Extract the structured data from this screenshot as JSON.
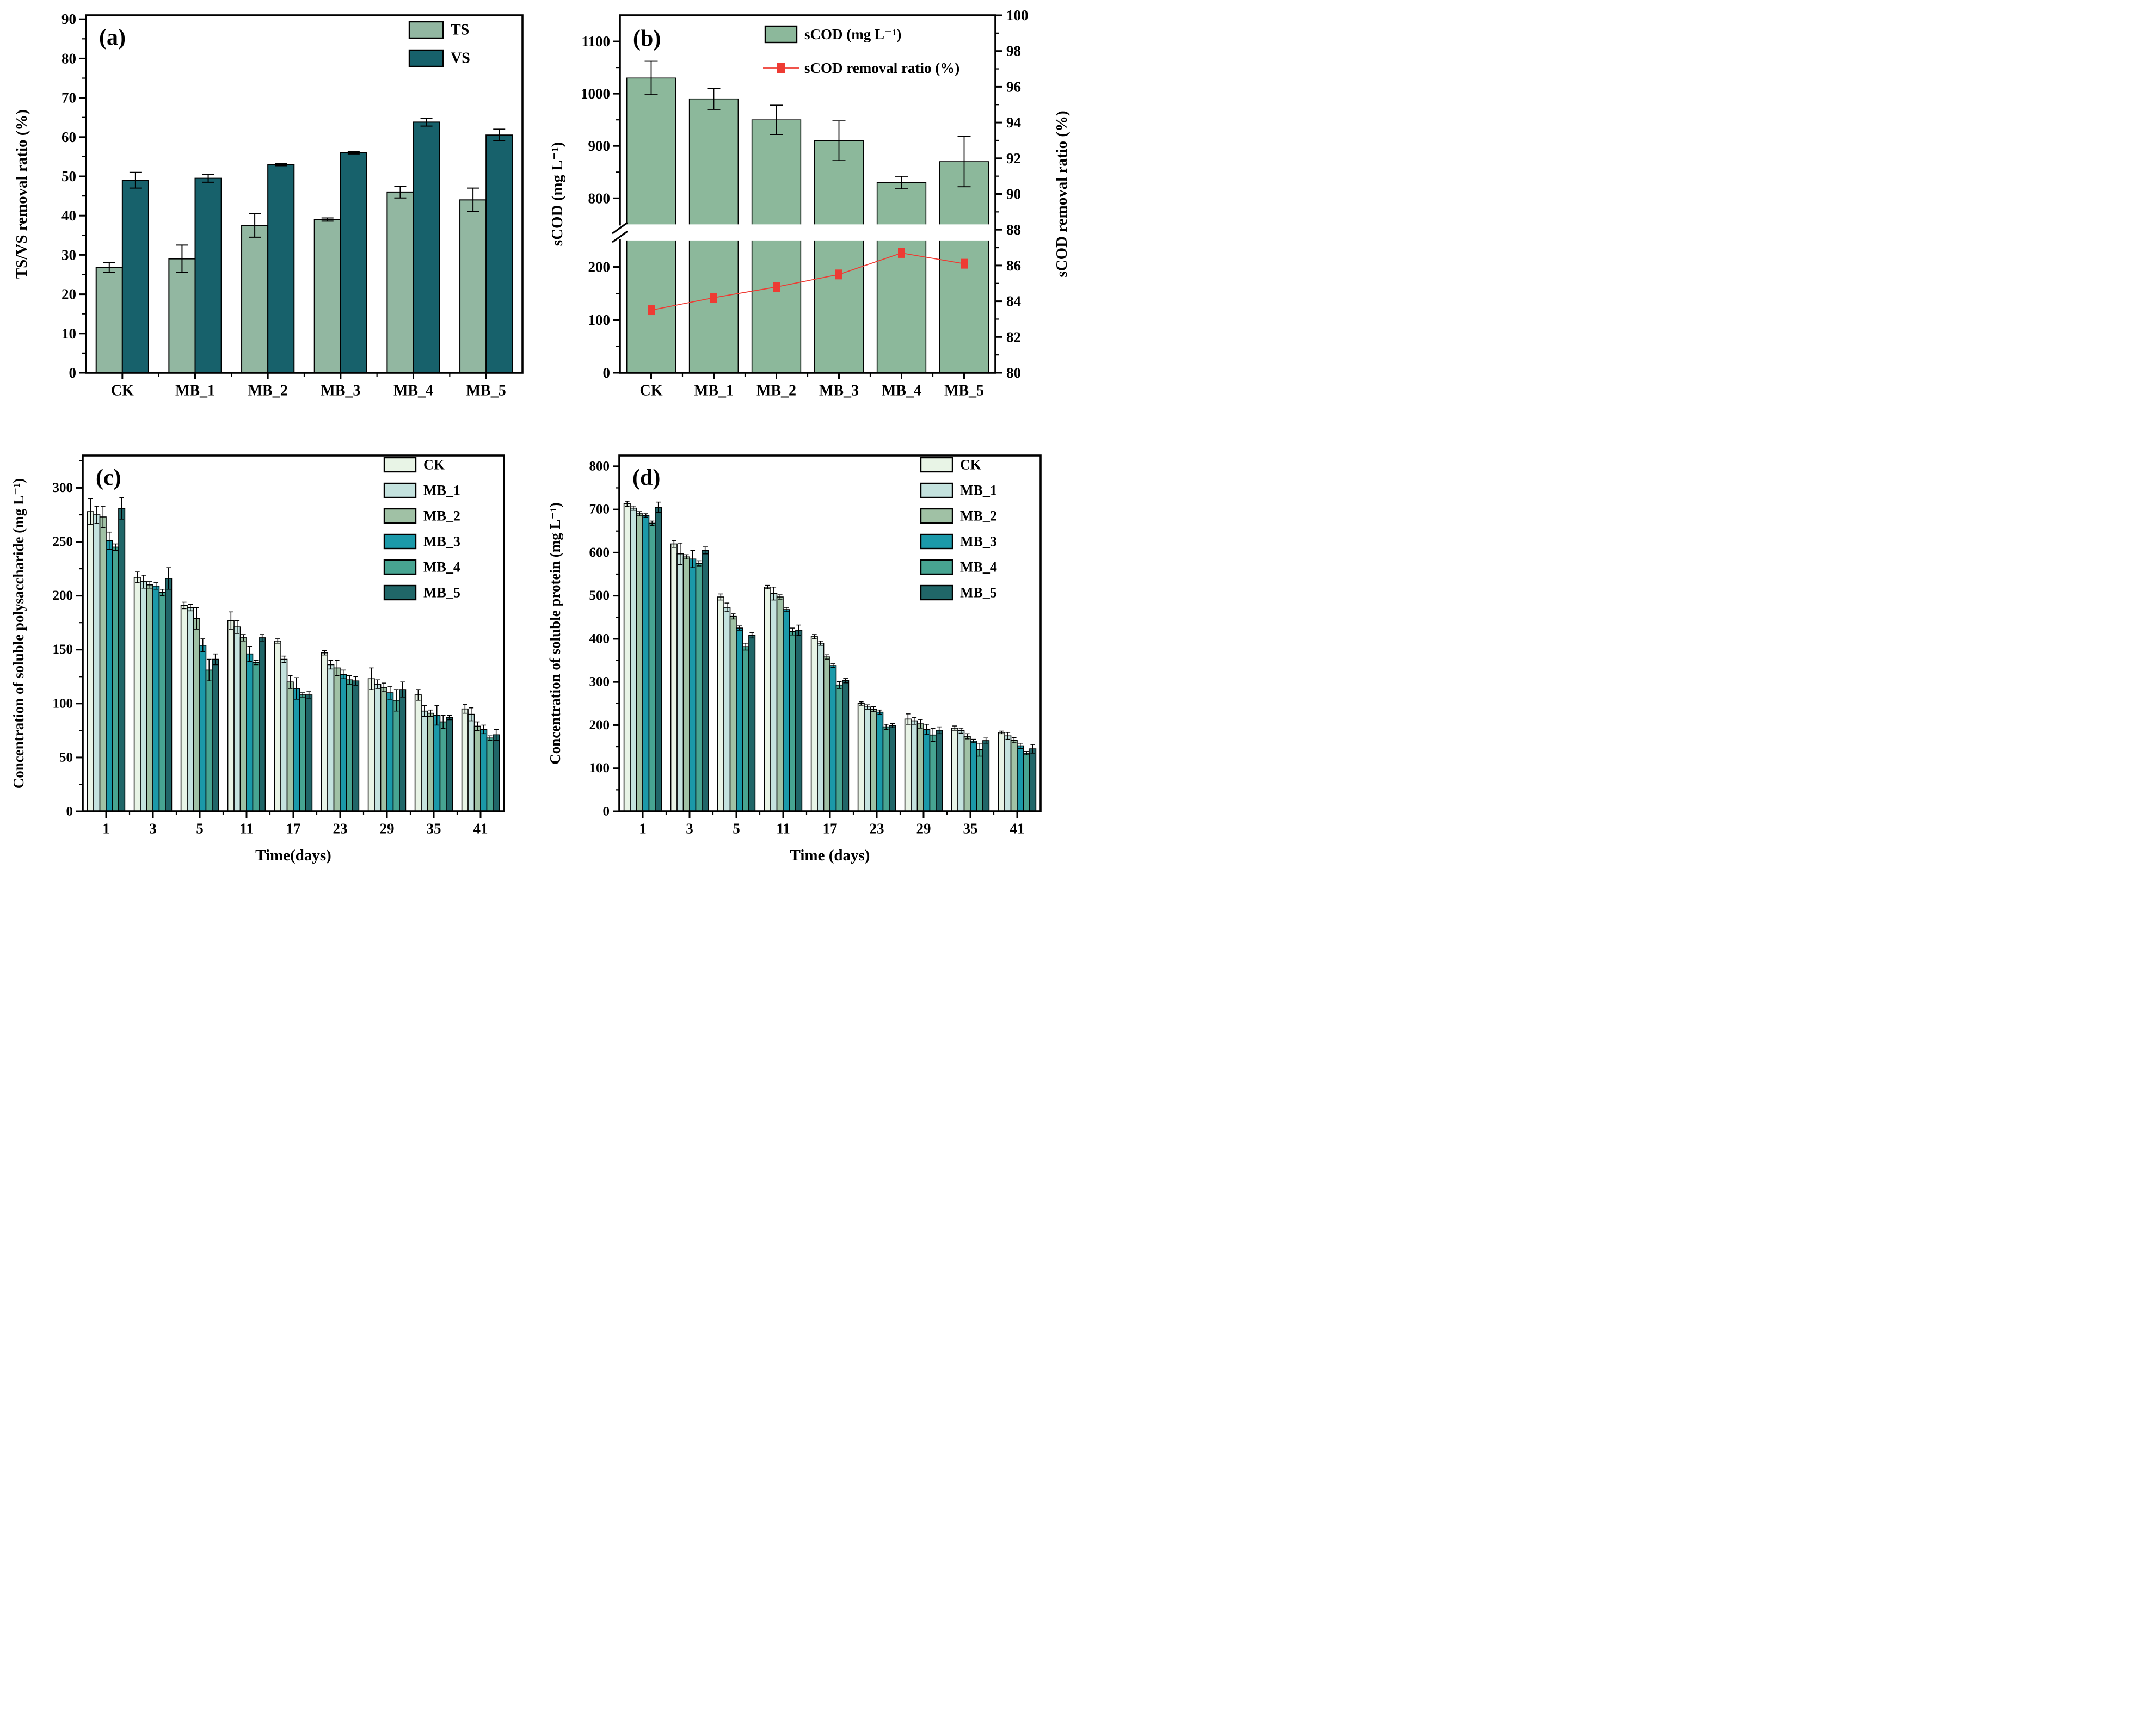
{
  "figure": {
    "background": "#ffffff",
    "panel_labels": [
      "(a)",
      "(b)",
      "(c)",
      "(d)"
    ]
  },
  "colors": {
    "ts": "#92b7a1",
    "vs": "#17616b",
    "scod_bar": "#8cb89b",
    "scod_line": "#ee3b33",
    "ck": "#e8f4e6",
    "mb1": "#c4e2de",
    "mb2": "#a0c1a5",
    "mb3": "#1b99a9",
    "mb4": "#47a491",
    "mb5": "#206668"
  },
  "chart_data": [
    {
      "id": "a",
      "type": "bar",
      "panel_label": "(a)",
      "ylabel": "TS/VS removal ratio (%)",
      "ylim": [
        0,
        91
      ],
      "yticks": [
        0,
        10,
        20,
        30,
        40,
        50,
        60,
        70,
        80,
        90
      ],
      "yminor_step": 5,
      "categories": [
        "CK",
        "MB_1",
        "MB_2",
        "MB_3",
        "MB_4",
        "MB_5"
      ],
      "legend_position": "top-right",
      "series": [
        {
          "name": "TS",
          "color": "#92b7a1",
          "values": [
            26.8,
            29.0,
            37.5,
            39.0,
            46.0,
            44.0
          ],
          "errors": [
            1.2,
            3.5,
            3.0,
            0.4,
            1.5,
            3.0
          ]
        },
        {
          "name": "VS",
          "color": "#17616b",
          "values": [
            49.0,
            49.5,
            53.0,
            56.0,
            63.8,
            60.5
          ],
          "errors": [
            2.0,
            1.0,
            0.3,
            0.3,
            1.0,
            1.5
          ]
        }
      ]
    },
    {
      "id": "b",
      "type": "bar-line-broken-axis",
      "panel_label": "(b)",
      "ylabel_left": "sCOD (mg L⁻¹)",
      "ylabel_right": "sCOD removal ratio (%)",
      "categories": [
        "CK",
        "MB_1",
        "MB_2",
        "MB_3",
        "MB_4",
        "MB_5"
      ],
      "left_axis": {
        "lower_range": [
          0,
          250
        ],
        "upper_range": [
          750,
          1150
        ],
        "lower_ticks": [
          0,
          100,
          200
        ],
        "lower_minor": [
          50,
          150
        ],
        "upper_ticks": [
          800,
          900,
          1000,
          1100
        ],
        "upper_minor": [
          850,
          950,
          1050
        ]
      },
      "right_axis": {
        "min": 80,
        "max": 100,
        "ticks": [
          80,
          82,
          84,
          86,
          88,
          90,
          92,
          94,
          96,
          98,
          100
        ]
      },
      "bars": {
        "name": "sCOD (mg L⁻¹)",
        "color": "#8cb89b",
        "values": [
          1030,
          990,
          950,
          910,
          830,
          870
        ],
        "errors": [
          32,
          20,
          28,
          38,
          12,
          48
        ]
      },
      "line": {
        "name": "sCOD removal ratio (%)",
        "color": "#ee3b33",
        "values": [
          83.5,
          84.2,
          84.8,
          85.5,
          86.7,
          86.1
        ]
      }
    },
    {
      "id": "c",
      "type": "grouped-bar",
      "panel_label": "(c)",
      "ylabel": "Concentration of soluble polysaccharide (mg L⁻¹)",
      "xlabel": "Time(days)",
      "ylim": [
        0,
        330
      ],
      "yticks": [
        0,
        50,
        100,
        150,
        200,
        250,
        300
      ],
      "yminor_step": 25,
      "categories": [
        "1",
        "3",
        "5",
        "11",
        "17",
        "23",
        "29",
        "35",
        "41"
      ],
      "legend_position": "top-right",
      "series": [
        {
          "name": "CK",
          "color": "#e8f4e6",
          "values": [
            278,
            217,
            191,
            177,
            158,
            147,
            123,
            108,
            95
          ],
          "errors": [
            12,
            5,
            3,
            8,
            2,
            2,
            10,
            5,
            4
          ]
        },
        {
          "name": "MB_1",
          "color": "#c4e2de",
          "values": [
            275,
            213,
            189,
            171,
            141,
            136,
            118,
            93,
            90
          ],
          "errors": [
            8,
            6,
            3,
            6,
            3,
            4,
            4,
            5,
            6
          ]
        },
        {
          "name": "MB_2",
          "color": "#a0c1a5",
          "values": [
            273,
            210,
            179,
            161,
            120,
            133,
            115,
            91,
            79
          ],
          "errors": [
            10,
            3,
            10,
            3,
            6,
            7,
            4,
            3,
            4
          ]
        },
        {
          "name": "MB_3",
          "color": "#1b99a9",
          "values": [
            251,
            209,
            154,
            146,
            114,
            127,
            110,
            89,
            76
          ],
          "errors": [
            8,
            3,
            6,
            7,
            10,
            4,
            6,
            9,
            4
          ]
        },
        {
          "name": "MB_4",
          "color": "#47a491",
          "values": [
            245,
            203,
            131,
            138,
            108,
            122,
            103,
            83,
            68
          ],
          "errors": [
            3,
            3,
            10,
            2,
            2,
            4,
            10,
            6,
            2
          ]
        },
        {
          "name": "MB_5",
          "color": "#206668",
          "values": [
            281,
            216,
            141,
            161,
            108,
            121,
            113,
            87,
            71
          ],
          "errors": [
            10,
            10,
            5,
            3,
            3,
            4,
            7,
            2,
            5
          ]
        }
      ]
    },
    {
      "id": "d",
      "type": "grouped-bar",
      "panel_label": "(d)",
      "ylabel": "Concentration of soluble protein (mg L⁻¹)",
      "xlabel": "Time (days)",
      "ylim": [
        0,
        825
      ],
      "yticks": [
        0,
        100,
        200,
        300,
        400,
        500,
        600,
        700,
        800
      ],
      "yminor_step": 50,
      "categories": [
        "1",
        "3",
        "5",
        "11",
        "17",
        "23",
        "29",
        "35",
        "41"
      ],
      "legend_position": "top-right",
      "series": [
        {
          "name": "CK",
          "color": "#e8f4e6",
          "values": [
            713,
            620,
            497,
            520,
            405,
            250,
            214,
            193,
            183
          ],
          "errors": [
            6,
            8,
            7,
            4,
            5,
            4,
            12,
            5,
            3
          ]
        },
        {
          "name": "MB_1",
          "color": "#c4e2de",
          "values": [
            703,
            597,
            473,
            505,
            390,
            242,
            210,
            187,
            175
          ],
          "errors": [
            5,
            25,
            10,
            15,
            5,
            5,
            8,
            6,
            8
          ]
        },
        {
          "name": "MB_2",
          "color": "#a0c1a5",
          "values": [
            690,
            590,
            452,
            497,
            358,
            237,
            203,
            174,
            165
          ],
          "errors": [
            5,
            5,
            6,
            5,
            5,
            6,
            10,
            6,
            6
          ]
        },
        {
          "name": "MB_3",
          "color": "#1b99a9",
          "values": [
            686,
            585,
            425,
            468,
            338,
            230,
            190,
            163,
            152
          ],
          "errors": [
            4,
            20,
            5,
            5,
            4,
            5,
            12,
            4,
            6
          ]
        },
        {
          "name": "MB_4",
          "color": "#47a491",
          "values": [
            668,
            575,
            382,
            417,
            293,
            196,
            177,
            143,
            135
          ],
          "errors": [
            5,
            6,
            8,
            8,
            8,
            6,
            15,
            15,
            4
          ]
        },
        {
          "name": "MB_5",
          "color": "#206668",
          "values": [
            705,
            605,
            408,
            420,
            303,
            199,
            188,
            164,
            145
          ],
          "errors": [
            12,
            8,
            6,
            12,
            5,
            5,
            8,
            6,
            10
          ]
        }
      ]
    }
  ]
}
